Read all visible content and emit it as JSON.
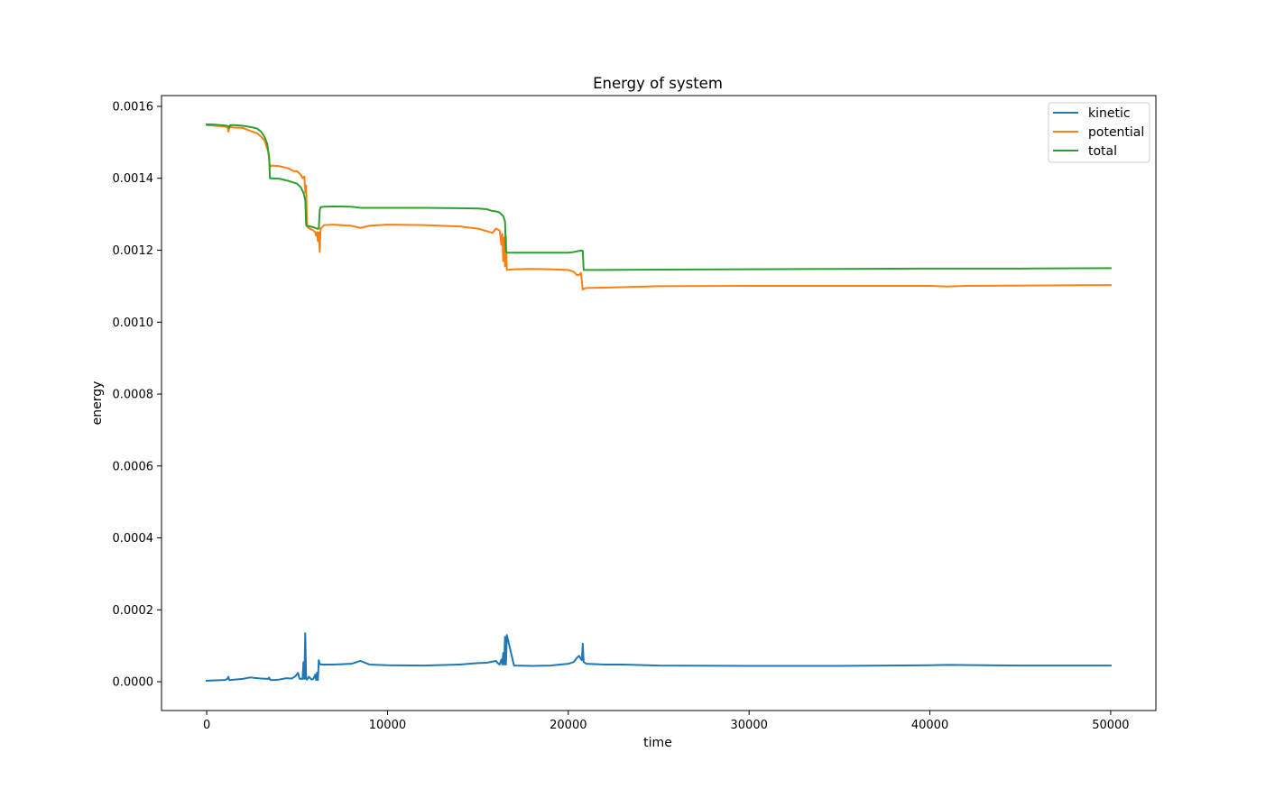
{
  "chart_data": {
    "type": "line",
    "title": "Energy of system",
    "xlabel": "time",
    "ylabel": "energy",
    "xlim": [
      -2500,
      52500
    ],
    "ylim": [
      -8e-05,
      0.00163
    ],
    "xticks": [
      0,
      10000,
      20000,
      30000,
      40000,
      50000
    ],
    "xtick_labels": [
      "0",
      "10000",
      "20000",
      "30000",
      "40000",
      "50000"
    ],
    "yticks": [
      0.0,
      0.0002,
      0.0004,
      0.0006,
      0.0008,
      0.001,
      0.0012,
      0.0014,
      0.0016
    ],
    "ytick_labels": [
      "0.0000",
      "0.0002",
      "0.0004",
      "0.0006",
      "0.0008",
      "0.0010",
      "0.0012",
      "0.0014",
      "0.0016"
    ],
    "grid": false,
    "legend_position": "upper right",
    "series": [
      {
        "name": "kinetic",
        "color": "#1f77b4",
        "x": [
          0,
          1000,
          1150,
          1200,
          1250,
          1300,
          1500,
          2000,
          2400,
          2600,
          3000,
          3400,
          3450,
          3500,
          3550,
          3700,
          4000,
          4400,
          4700,
          4900,
          5050,
          5100,
          5150,
          5300,
          5350,
          5400,
          5450,
          5500,
          5550,
          5650,
          5800,
          5900,
          6000,
          6050,
          6100,
          6150,
          6200,
          6250,
          6300,
          7000,
          8000,
          8500,
          9000,
          10000,
          12000,
          14000,
          15000,
          15500,
          15800,
          16000,
          16100,
          16200,
          16300,
          16350,
          16400,
          16450,
          16500,
          16550,
          16600,
          17000,
          18000,
          19000,
          20000,
          20300,
          20500,
          20600,
          20700,
          20750,
          20800,
          20850,
          21000,
          22000,
          23000,
          25000,
          30000,
          35000,
          40000,
          41000,
          45000,
          50000
        ],
        "y": [
          3e-06,
          5e-06,
          8e-06,
          1.4e-05,
          5e-06,
          5e-06,
          6e-06,
          8e-06,
          1.2e-05,
          1.1e-05,
          9e-06,
          8e-06,
          1.2e-05,
          6e-06,
          5e-06,
          5e-06,
          6e-06,
          1e-05,
          9e-06,
          1.5e-05,
          2.5e-05,
          1.4e-05,
          8e-06,
          8e-06,
          5.4e-05,
          8e-06,
          0.000135,
          8e-06,
          6e-06,
          1.4e-05,
          6e-06,
          8e-06,
          2e-05,
          5e-06,
          2.5e-05,
          5e-06,
          6e-05,
          5e-05,
          4.8e-05,
          4.8e-05,
          5e-05,
          5.8e-05,
          4.8e-05,
          4.6e-05,
          4.5e-05,
          4.8e-05,
          5.2e-05,
          5.3e-05,
          5.6e-05,
          5.8e-05,
          5.2e-05,
          4.8e-05,
          6.2e-05,
          4.8e-05,
          8e-05,
          4.8e-05,
          0.000125,
          4.8e-05,
          0.00013,
          4.5e-05,
          4.4e-05,
          4.5e-05,
          5e-05,
          5.5e-05,
          6.8e-05,
          7.2e-05,
          6.3e-05,
          6e-05,
          0.000106,
          5.5e-05,
          5e-05,
          4.8e-05,
          4.8e-05,
          4.5e-05,
          4.4e-05,
          4.4e-05,
          4.6e-05,
          4.7e-05,
          4.5e-05,
          4.5e-05
        ]
      },
      {
        "name": "potential",
        "color": "#ff7f0e",
        "x": [
          0,
          500,
          1000,
          1150,
          1200,
          1250,
          1300,
          1500,
          2000,
          2500,
          2800,
          3000,
          3200,
          3400,
          3500,
          3550,
          3600,
          4000,
          4500,
          4800,
          5000,
          5200,
          5300,
          5400,
          5450,
          5500,
          5550,
          5700,
          5900,
          6000,
          6050,
          6100,
          6150,
          6200,
          6250,
          6300,
          6500,
          7000,
          8000,
          8500,
          9000,
          10000,
          12000,
          14000,
          15000,
          15500,
          15800,
          16000,
          16200,
          16300,
          16350,
          16400,
          16450,
          16500,
          16550,
          16600,
          17000,
          18000,
          19000,
          20000,
          20300,
          20500,
          20600,
          20700,
          20800,
          20850,
          21000,
          22000,
          25000,
          30000,
          35000,
          40000,
          41000,
          42000,
          50000
        ],
        "y": [
          0.001548,
          0.001546,
          0.001544,
          0.001542,
          0.00153,
          0.00154,
          0.001543,
          0.001541,
          0.00154,
          0.00153,
          0.001525,
          0.001516,
          0.001505,
          0.001475,
          0.00143,
          0.001435,
          0.001435,
          0.001434,
          0.001428,
          0.00142,
          0.00142,
          0.00141,
          0.0014,
          0.001405,
          0.00136,
          0.00138,
          0.001265,
          0.00126,
          0.001255,
          0.00125,
          0.00124,
          0.00125,
          0.001225,
          0.00125,
          0.001195,
          0.00126,
          0.00127,
          0.001271,
          0.001268,
          0.001262,
          0.001268,
          0.001271,
          0.00127,
          0.001266,
          0.00126,
          0.001253,
          0.001248,
          0.00126,
          0.001255,
          0.001215,
          0.001245,
          0.00117,
          0.001235,
          0.001155,
          0.00124,
          0.001145,
          0.001147,
          0.001148,
          0.001147,
          0.001145,
          0.00114,
          0.00113,
          0.001132,
          0.001137,
          0.00109,
          0.001093,
          0.001095,
          0.001096,
          0.0011,
          0.001101,
          0.001101,
          0.001101,
          0.001099,
          0.001101,
          0.001103
        ]
      },
      {
        "name": "total",
        "color": "#2ca02c",
        "x": [
          0,
          500,
          1000,
          1200,
          1250,
          1300,
          1500,
          2000,
          2500,
          2800,
          3000,
          3200,
          3350,
          3450,
          3500,
          3600,
          4000,
          4500,
          5000,
          5200,
          5350,
          5450,
          5500,
          5550,
          5900,
          6000,
          6100,
          6200,
          6250,
          6300,
          6500,
          7000,
          8000,
          8500,
          9000,
          10000,
          12000,
          14000,
          15000,
          15500,
          15800,
          16000,
          16200,
          16400,
          16500,
          16550,
          16600,
          16650,
          17000,
          18000,
          19000,
          20000,
          20300,
          20500,
          20600,
          20700,
          20800,
          20850,
          21000,
          22000,
          25000,
          30000,
          35000,
          40000,
          45000,
          50000
        ],
        "y": [
          0.00155,
          0.001549,
          0.001547,
          0.001545,
          0.00154,
          0.001548,
          0.001548,
          0.001546,
          0.001542,
          0.001538,
          0.00153,
          0.001515,
          0.001495,
          0.00146,
          0.0014,
          0.0014,
          0.001399,
          0.001393,
          0.001385,
          0.001375,
          0.00136,
          0.00134,
          0.00127,
          0.001268,
          0.001264,
          0.001262,
          0.00126,
          0.00126,
          0.00131,
          0.00132,
          0.001321,
          0.001322,
          0.001321,
          0.001318,
          0.001318,
          0.001318,
          0.001318,
          0.001317,
          0.001316,
          0.001314,
          0.001309,
          0.001308,
          0.001305,
          0.001295,
          0.00128,
          0.001195,
          0.001194,
          0.001193,
          0.001193,
          0.001193,
          0.001193,
          0.001193,
          0.001195,
          0.001197,
          0.001198,
          0.001199,
          0.001198,
          0.001145,
          0.001145,
          0.001145,
          0.001146,
          0.001147,
          0.001148,
          0.001149,
          0.001149,
          0.00115
        ]
      }
    ]
  }
}
